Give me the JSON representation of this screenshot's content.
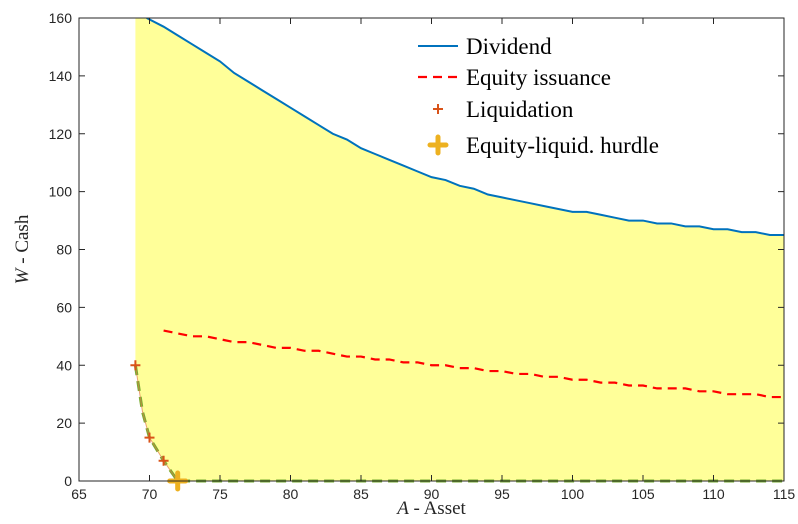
{
  "chart_data": {
    "type": "area",
    "xlabel": {
      "italic": "A",
      "rest": " - Asset"
    },
    "ylabel": {
      "italic": "W",
      "rest": " - Cash"
    },
    "xlim": [
      65,
      115
    ],
    "ylim": [
      0,
      160
    ],
    "xticks": [
      65,
      70,
      75,
      80,
      85,
      90,
      95,
      100,
      105,
      110,
      115
    ],
    "yticks": [
      0,
      20,
      40,
      60,
      80,
      100,
      120,
      140,
      160
    ],
    "legend_position": "top-right",
    "colors": {
      "fill": "#ffff99",
      "dividend": "#0072bd",
      "equity": "#ff0000",
      "liquidation": "#d95319",
      "hurdle": "#edb120",
      "lower_boundary": "#77ac30"
    },
    "series": [
      {
        "name": "Dividend",
        "style": "solid-line",
        "x": [
          69.8,
          71,
          72,
          73,
          74,
          75,
          76,
          77,
          78,
          79,
          80,
          81,
          82,
          83,
          84,
          85,
          86,
          87,
          88,
          89,
          90,
          91,
          92,
          93,
          94,
          95,
          96,
          97,
          98,
          99,
          100,
          101,
          102,
          103,
          104,
          105,
          106,
          107,
          108,
          109,
          110,
          111,
          112,
          113,
          114,
          115
        ],
        "y": [
          160,
          157,
          154,
          151,
          148,
          145,
          141,
          138,
          135,
          132,
          129,
          126,
          123,
          120,
          118,
          115,
          113,
          111,
          109,
          107,
          105,
          104,
          102,
          101,
          99,
          98,
          97,
          96,
          95,
          94,
          93,
          93,
          92,
          91,
          90,
          90,
          89,
          89,
          88,
          88,
          87,
          87,
          86,
          86,
          85,
          85
        ]
      },
      {
        "name": "Equity issuance",
        "style": "dashed-line",
        "x": [
          71,
          72,
          73,
          74,
          75,
          76,
          77,
          78,
          79,
          80,
          81,
          82,
          83,
          84,
          85,
          86,
          87,
          88,
          89,
          90,
          91,
          92,
          93,
          94,
          95,
          96,
          97,
          98,
          99,
          100,
          101,
          102,
          103,
          104,
          105,
          106,
          107,
          108,
          109,
          110,
          111,
          112,
          113,
          114,
          115
        ],
        "y": [
          52,
          51,
          50,
          50,
          49,
          48,
          48,
          47,
          46,
          46,
          45,
          45,
          44,
          43,
          43,
          42,
          42,
          41,
          41,
          40,
          40,
          39,
          39,
          38,
          38,
          37,
          37,
          36,
          36,
          35,
          35,
          34,
          34,
          33,
          33,
          32,
          32,
          32,
          31,
          31,
          30,
          30,
          30,
          29,
          29
        ]
      },
      {
        "name": "Liquidation",
        "style": "plus-marker",
        "x": [
          69,
          70,
          71,
          72
        ],
        "y": [
          40,
          15,
          7,
          0
        ]
      },
      {
        "name": "Equity-liquid. hurdle",
        "style": "bold-plus-marker",
        "x": [
          72
        ],
        "y": [
          0
        ]
      }
    ],
    "lower_boundary": {
      "x": [
        69,
        69.5,
        70,
        71,
        72,
        115
      ],
      "y": [
        40,
        24,
        15,
        7,
        0,
        0
      ]
    },
    "region_left_x": 69
  }
}
